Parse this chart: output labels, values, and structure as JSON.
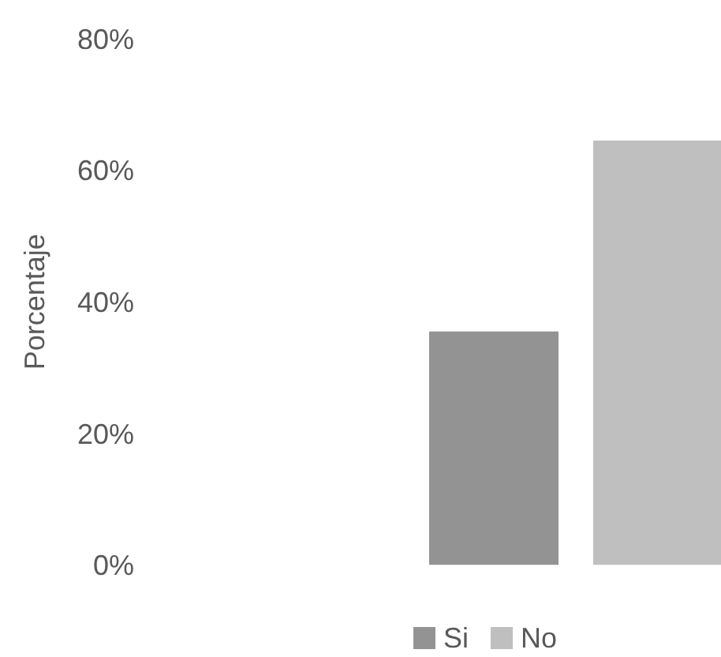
{
  "chart_data": {
    "type": "bar",
    "ylabel": "Porcentaje",
    "categories": [
      null
    ],
    "series": [
      {
        "name": "Si",
        "color": "#939393",
        "values": [
          35.5
        ]
      },
      {
        "name": "No",
        "color": "#bfbfbf",
        "values": [
          64.5
        ]
      }
    ],
    "ylim": [
      0,
      80
    ],
    "yticks": [
      {
        "value": 0,
        "label": "0%"
      },
      {
        "value": 20,
        "label": "20%"
      },
      {
        "value": 40,
        "label": "40%"
      },
      {
        "value": 60,
        "label": "60%"
      },
      {
        "value": 80,
        "label": "80%"
      }
    ],
    "legend": "bottom"
  }
}
